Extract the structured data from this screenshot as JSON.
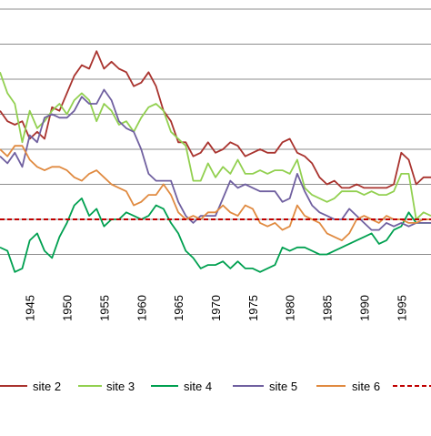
{
  "chart_data": {
    "type": "line",
    "x_ticks": [
      "1945",
      "1950",
      "1955",
      "1960",
      "1965",
      "1970",
      "1975",
      "1980",
      "1985",
      "1990",
      "1995"
    ],
    "xlim": [
      1941,
      1999
    ],
    "ylim": [
      0,
      8
    ],
    "grid": true,
    "legend_placement": "bottom",
    "reference_line": {
      "y": 2.0,
      "color": "#c00000",
      "style": "dashed"
    },
    "series": [
      {
        "name": "site 2",
        "color": "#a9332e",
        "x": [
          1941,
          1942,
          1943,
          1944,
          1945,
          1946,
          1947,
          1948,
          1949,
          1950,
          1951,
          1952,
          1953,
          1954,
          1955,
          1956,
          1957,
          1958,
          1959,
          1960,
          1961,
          1962,
          1963,
          1964,
          1965,
          1966,
          1967,
          1968,
          1969,
          1970,
          1971,
          1972,
          1973,
          1974,
          1975,
          1976,
          1977,
          1978,
          1979,
          1980,
          1981,
          1982,
          1983,
          1984,
          1985,
          1986,
          1987,
          1988,
          1989,
          1990,
          1991,
          1992,
          1993,
          1994,
          1995,
          1996,
          1997,
          1998,
          1999
        ],
        "y": [
          5.1,
          4.8,
          4.7,
          4.8,
          4.3,
          4.5,
          4.3,
          5.2,
          5.1,
          5.6,
          6.1,
          6.4,
          6.3,
          6.8,
          6.3,
          6.5,
          6.3,
          6.2,
          5.8,
          5.9,
          6.2,
          5.8,
          5.1,
          4.8,
          4.2,
          4.2,
          3.8,
          3.9,
          4.2,
          3.9,
          4.0,
          4.2,
          4.1,
          3.8,
          3.9,
          4.0,
          3.9,
          3.9,
          4.2,
          4.3,
          3.9,
          3.8,
          3.6,
          3.2,
          3.0,
          3.1,
          2.9,
          2.9,
          3.0,
          2.9,
          2.9,
          2.9,
          2.9,
          3.0,
          3.9,
          3.7,
          3.0,
          3.2,
          3.2
        ]
      },
      {
        "name": "site 3",
        "color": "#92d050",
        "x": [
          1941,
          1942,
          1943,
          1944,
          1945,
          1946,
          1947,
          1948,
          1949,
          1950,
          1951,
          1952,
          1953,
          1954,
          1955,
          1956,
          1957,
          1958,
          1959,
          1960,
          1961,
          1962,
          1963,
          1964,
          1965,
          1966,
          1967,
          1968,
          1969,
          1970,
          1971,
          1972,
          1973,
          1974,
          1975,
          1976,
          1977,
          1978,
          1979,
          1980,
          1981,
          1982,
          1983,
          1984,
          1985,
          1986,
          1987,
          1988,
          1989,
          1990,
          1991,
          1992,
          1993,
          1994,
          1995,
          1996,
          1997,
          1998,
          1999
        ],
        "y": [
          6.2,
          5.6,
          5.3,
          4.2,
          5.1,
          4.6,
          4.8,
          5.1,
          5.3,
          5.0,
          5.4,
          5.6,
          5.4,
          4.8,
          5.3,
          5.1,
          4.7,
          4.8,
          4.5,
          4.9,
          5.2,
          5.3,
          5.1,
          4.5,
          4.3,
          4.1,
          3.1,
          3.1,
          3.6,
          3.2,
          3.5,
          3.3,
          3.7,
          3.3,
          3.3,
          3.4,
          3.3,
          3.4,
          3.4,
          3.3,
          3.7,
          2.9,
          2.7,
          2.6,
          2.5,
          2.6,
          2.8,
          2.8,
          2.8,
          2.7,
          2.8,
          2.7,
          2.7,
          2.8,
          3.3,
          3.3,
          2.0,
          2.2,
          2.1
        ]
      },
      {
        "name": "site 4",
        "color": "#00a050",
        "x": [
          1941,
          1942,
          1943,
          1944,
          1945,
          1946,
          1947,
          1948,
          1949,
          1950,
          1951,
          1952,
          1953,
          1954,
          1955,
          1956,
          1957,
          1958,
          1959,
          1960,
          1961,
          1962,
          1963,
          1964,
          1965,
          1966,
          1967,
          1968,
          1969,
          1970,
          1971,
          1972,
          1973,
          1974,
          1975,
          1976,
          1977,
          1978,
          1979,
          1980,
          1981,
          1982,
          1983,
          1984,
          1985,
          1986,
          1987,
          1988,
          1989,
          1990,
          1991,
          1992,
          1993,
          1994,
          1995,
          1996,
          1997,
          1998,
          1999
        ],
        "y": [
          1.2,
          1.1,
          0.5,
          0.6,
          1.4,
          1.6,
          1.1,
          0.9,
          1.5,
          1.9,
          2.4,
          2.6,
          2.1,
          2.3,
          1.8,
          2.0,
          2.0,
          2.2,
          2.1,
          2.0,
          2.1,
          2.4,
          2.3,
          1.9,
          1.6,
          1.1,
          0.9,
          0.6,
          0.7,
          0.7,
          0.8,
          0.6,
          0.8,
          0.6,
          0.6,
          0.5,
          0.6,
          0.7,
          1.2,
          1.1,
          1.2,
          1.2,
          1.1,
          1.0,
          1.0,
          1.1,
          1.2,
          1.3,
          1.4,
          1.5,
          1.6,
          1.3,
          1.4,
          1.7,
          1.8,
          2.2,
          1.9,
          1.9,
          1.9
        ]
      },
      {
        "name": "site 5",
        "color": "#7060a0",
        "x": [
          1941,
          1942,
          1943,
          1944,
          1945,
          1946,
          1947,
          1948,
          1949,
          1950,
          1951,
          1952,
          1953,
          1954,
          1955,
          1956,
          1957,
          1958,
          1959,
          1960,
          1961,
          1962,
          1963,
          1964,
          1965,
          1966,
          1967,
          1968,
          1969,
          1970,
          1971,
          1972,
          1973,
          1974,
          1975,
          1976,
          1977,
          1978,
          1979,
          1980,
          1981,
          1982,
          1983,
          1984,
          1985,
          1986,
          1987,
          1988,
          1989,
          1990,
          1991,
          1992,
          1993,
          1994,
          1995,
          1996,
          1997,
          1998,
          1999
        ],
        "y": [
          3.8,
          3.6,
          3.9,
          3.5,
          4.4,
          4.2,
          4.9,
          5.0,
          4.9,
          4.9,
          5.1,
          5.5,
          5.3,
          5.3,
          5.7,
          5.4,
          4.8,
          4.6,
          4.5,
          4.0,
          3.3,
          3.1,
          3.1,
          3.1,
          2.5,
          2.1,
          1.9,
          2.1,
          2.1,
          2.1,
          2.6,
          3.1,
          2.9,
          3.0,
          2.9,
          2.8,
          2.8,
          2.8,
          2.5,
          2.6,
          3.3,
          2.8,
          2.4,
          2.2,
          2.1,
          2.0,
          2.0,
          2.3,
          2.1,
          1.9,
          1.7,
          1.7,
          1.9,
          1.8,
          1.9,
          1.8,
          1.9,
          1.9,
          1.9
        ]
      },
      {
        "name": "site 6",
        "color": "#e08a40",
        "x": [
          1941,
          1942,
          1943,
          1944,
          1945,
          1946,
          1947,
          1948,
          1949,
          1950,
          1951,
          1952,
          1953,
          1954,
          1955,
          1956,
          1957,
          1958,
          1959,
          1960,
          1961,
          1962,
          1963,
          1964,
          1965,
          1966,
          1967,
          1968,
          1969,
          1970,
          1971,
          1972,
          1973,
          1974,
          1975,
          1976,
          1977,
          1978,
          1979,
          1980,
          1981,
          1982,
          1983,
          1984,
          1985,
          1986,
          1987,
          1988,
          1989,
          1990,
          1991,
          1992,
          1993,
          1994,
          1995,
          1996,
          1997,
          1998,
          1999
        ],
        "y": [
          4.0,
          3.8,
          4.1,
          4.1,
          3.7,
          3.5,
          3.4,
          3.5,
          3.5,
          3.4,
          3.2,
          3.1,
          3.3,
          3.4,
          3.2,
          3.0,
          2.9,
          2.8,
          2.4,
          2.5,
          2.7,
          2.7,
          3.0,
          2.7,
          2.2,
          2.0,
          2.1,
          2.0,
          2.2,
          2.2,
          2.4,
          2.2,
          2.1,
          2.4,
          2.3,
          1.9,
          1.8,
          1.9,
          1.7,
          1.8,
          2.4,
          2.1,
          2.0,
          1.9,
          1.6,
          1.5,
          1.4,
          1.6,
          2.0,
          2.1,
          2.0,
          1.9,
          2.1,
          2.0,
          2.0,
          1.9,
          1.9,
          2.0,
          2.0
        ]
      },
      {
        "name": "",
        "color": "#c00000",
        "dashed": true,
        "x": [
          1941,
          1999
        ],
        "y": [
          2.0,
          2.0
        ]
      }
    ]
  }
}
